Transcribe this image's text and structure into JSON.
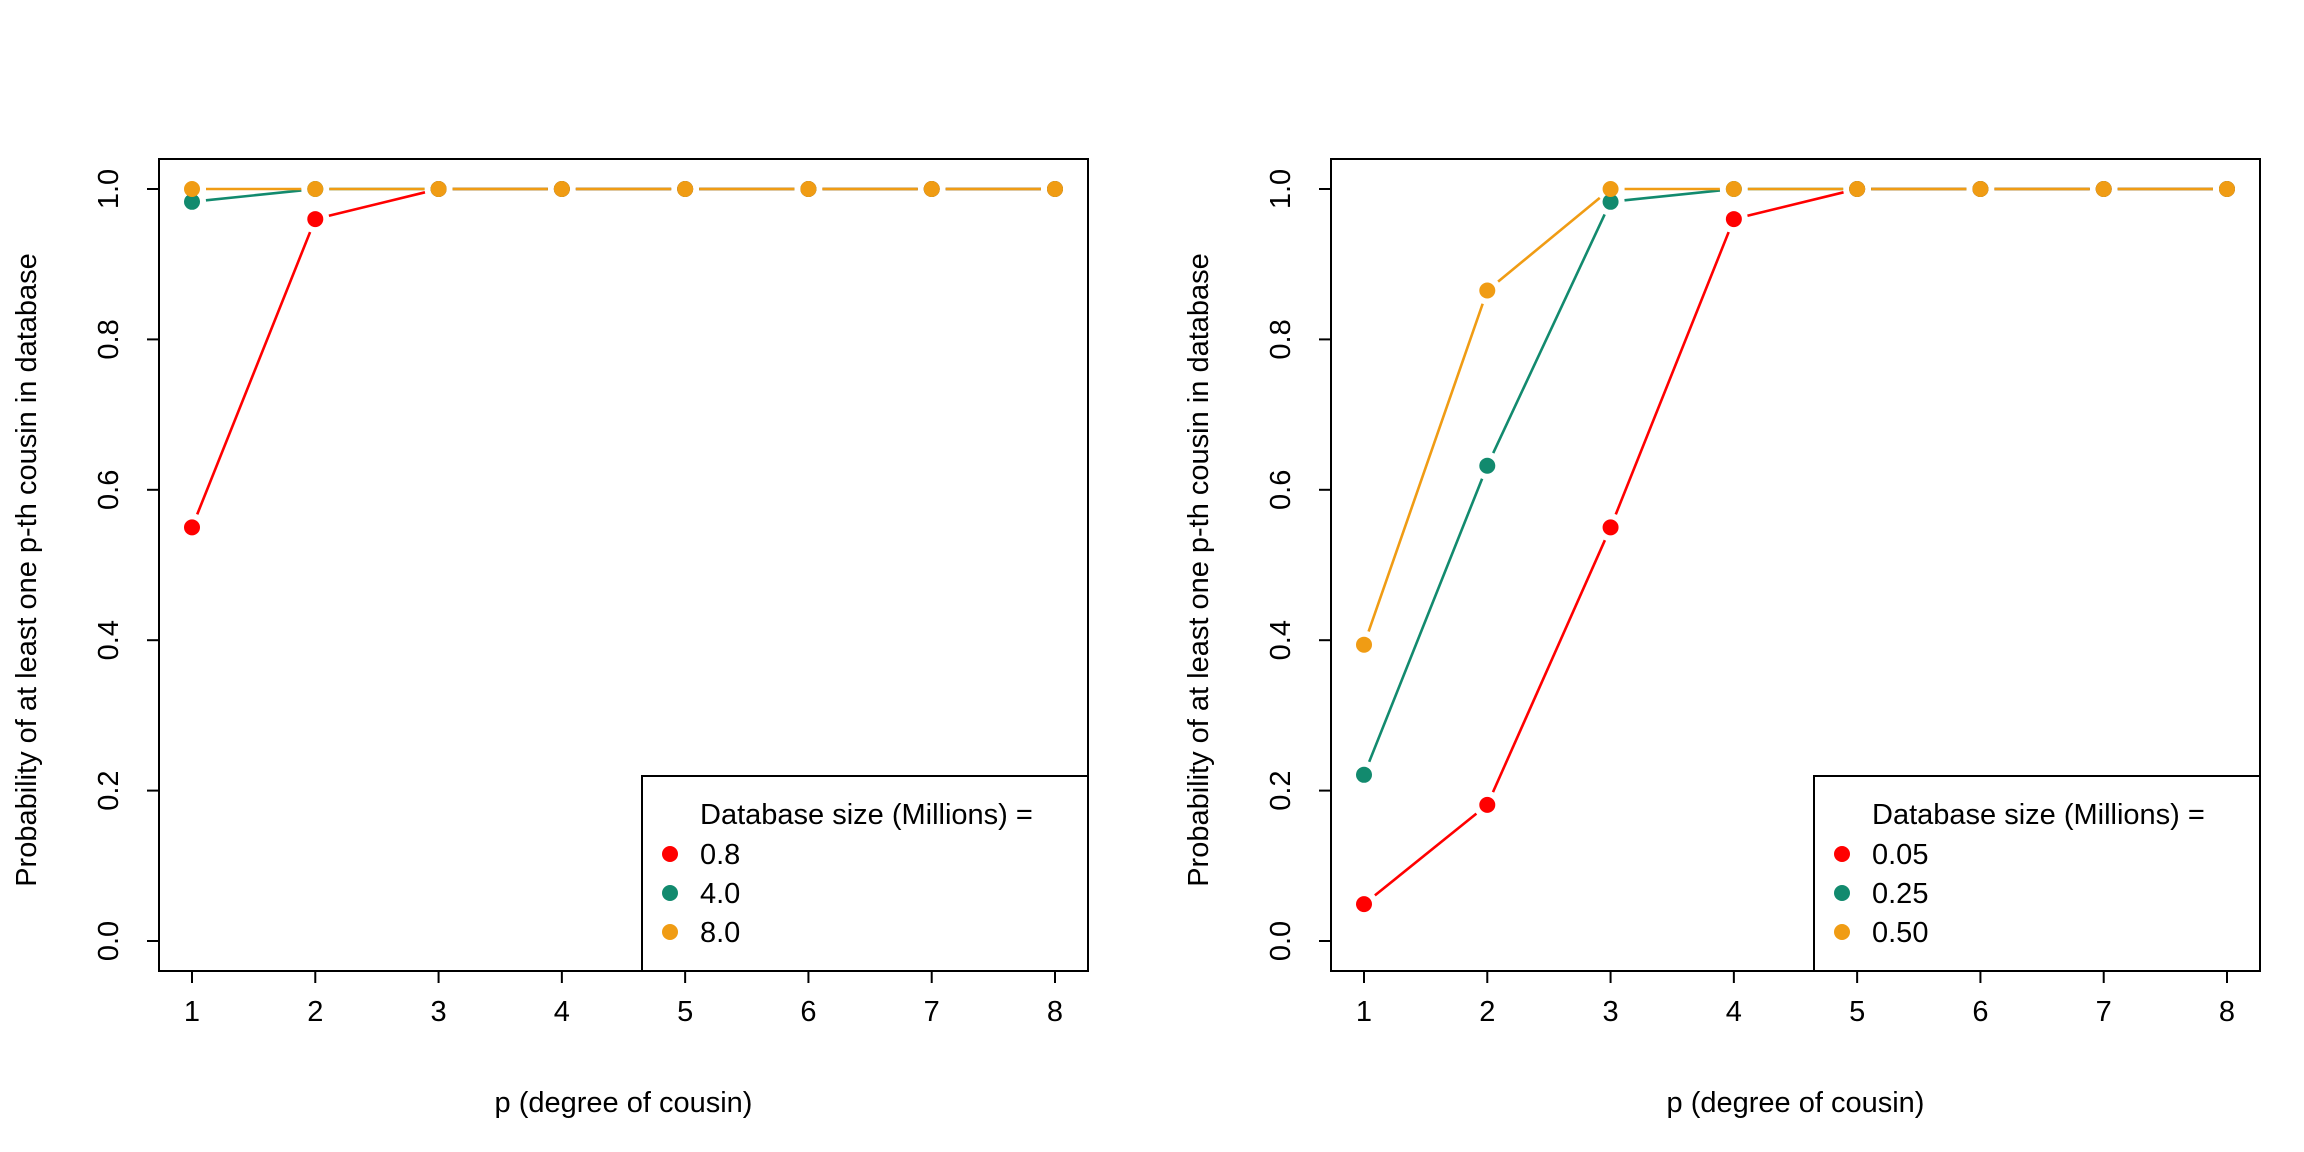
{
  "chart_data": [
    {
      "type": "line",
      "title": "",
      "xlabel": "p (degree of cousin)",
      "ylabel": "Probability of at least one p-th cousin in database",
      "x": [
        1,
        2,
        3,
        4,
        5,
        6,
        7,
        8
      ],
      "xlim": [
        1,
        8
      ],
      "ylim": [
        0.0,
        1.0
      ],
      "xticks": [
        "1",
        "2",
        "3",
        "4",
        "5",
        "6",
        "7",
        "8"
      ],
      "yticks": [
        "0.0",
        "0.2",
        "0.4",
        "0.6",
        "0.8",
        "1.0"
      ],
      "grid": false,
      "legend": {
        "title": "Database size (Millions) =",
        "placement": "bottom-right"
      },
      "series": [
        {
          "name": "0.8",
          "color": "#ff0000",
          "values": [
            0.55,
            0.96,
            1.0,
            1.0,
            1.0,
            1.0,
            1.0,
            1.0
          ]
        },
        {
          "name": "4.0",
          "color": "#128a6e",
          "values": [
            0.983,
            1.0,
            1.0,
            1.0,
            1.0,
            1.0,
            1.0,
            1.0
          ]
        },
        {
          "name": "8.0",
          "color": "#f09c14",
          "values": [
            1.0,
            1.0,
            1.0,
            1.0,
            1.0,
            1.0,
            1.0,
            1.0
          ]
        }
      ]
    },
    {
      "type": "line",
      "title": "",
      "xlabel": "p (degree of cousin)",
      "ylabel": "Probability of at least one p-th cousin in database",
      "x": [
        1,
        2,
        3,
        4,
        5,
        6,
        7,
        8
      ],
      "xlim": [
        1,
        8
      ],
      "ylim": [
        0.0,
        1.0
      ],
      "xticks": [
        "1",
        "2",
        "3",
        "4",
        "5",
        "6",
        "7",
        "8"
      ],
      "yticks": [
        "0.0",
        "0.2",
        "0.4",
        "0.6",
        "0.8",
        "1.0"
      ],
      "grid": false,
      "legend": {
        "title": "Database size (Millions) =",
        "placement": "bottom-right"
      },
      "series": [
        {
          "name": "0.05",
          "color": "#ff0000",
          "values": [
            0.049,
            0.181,
            0.55,
            0.96,
            1.0,
            1.0,
            1.0,
            1.0
          ]
        },
        {
          "name": "0.25",
          "color": "#128a6e",
          "values": [
            0.221,
            0.632,
            0.983,
            1.0,
            1.0,
            1.0,
            1.0,
            1.0
          ]
        },
        {
          "name": "0.50",
          "color": "#f09c14",
          "values": [
            0.394,
            0.865,
            1.0,
            1.0,
            1.0,
            1.0,
            1.0,
            1.0
          ]
        }
      ]
    }
  ]
}
